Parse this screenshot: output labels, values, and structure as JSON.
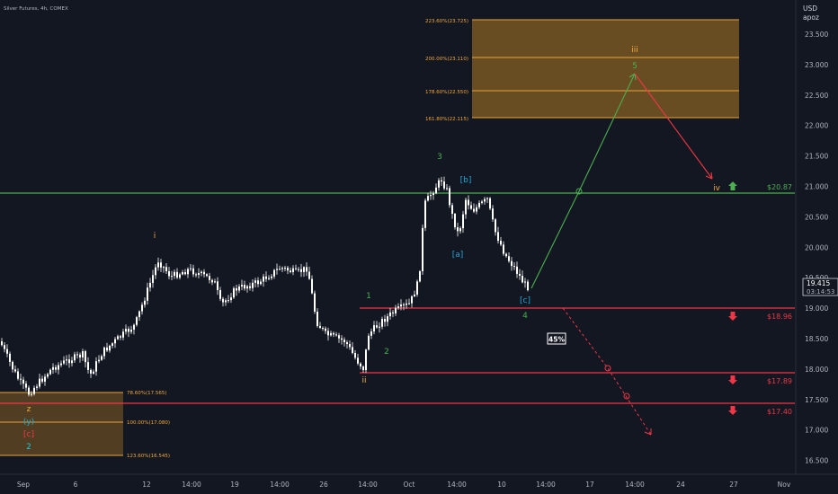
{
  "header": {
    "title": "Silver Futures, 4h, COMEX"
  },
  "currency": "USD",
  "currency_sub": "apoz",
  "chart_data": {
    "type": "candlestick",
    "ylim": [
      16.3,
      23.95
    ],
    "y_ticks": [
      "23.500",
      "23.000",
      "22.500",
      "22.000",
      "21.500",
      "21.000",
      "20.500",
      "20.000",
      "19.500",
      "19.000",
      "18.500",
      "18.000",
      "17.500",
      "17.000",
      "16.500"
    ],
    "x_ticks": [
      "Sep",
      "6",
      "12",
      "14:00",
      "19",
      "14:00",
      "26",
      "14:00",
      "Oct",
      "14:00",
      "10",
      "14:00",
      "17",
      "14:00",
      "24",
      "27",
      "Nov"
    ],
    "last_price": "19.415",
    "countdown": "03:14:53",
    "fib_upper": {
      "levels": [
        {
          "label": "223.60%(23.725)",
          "value": 23.725
        },
        {
          "label": "200.00%(23.110)",
          "value": 23.11
        },
        {
          "label": "178.60%(22.550)",
          "value": 22.55
        },
        {
          "label": "161.80%(22.115)",
          "value": 22.115
        }
      ]
    },
    "fib_lower": {
      "levels": [
        {
          "label": "78.60%(17.565)",
          "value": 17.565
        },
        {
          "label": "100.00%(17.080)",
          "value": 17.08
        },
        {
          "label": "123.60%(16.545)",
          "value": 16.545
        }
      ]
    },
    "horizontal_levels": [
      {
        "value": 20.87,
        "label": "$20.87",
        "color": "#4caf50",
        "arrow": "up"
      },
      {
        "value": 18.96,
        "label": "$18.96",
        "color": "#f23645",
        "arrow": "down"
      },
      {
        "value": 17.89,
        "label": "$17.89",
        "color": "#f23645",
        "arrow": "down"
      },
      {
        "value": 17.4,
        "label": "$17.40",
        "color": "#f23645",
        "arrow": "down"
      }
    ],
    "wave_labels": [
      {
        "text": "i",
        "color": "#f2a93b"
      },
      {
        "text": "ii",
        "color": "#f2a93b"
      },
      {
        "text": "iii",
        "color": "#f2a93b"
      },
      {
        "text": "iv",
        "color": "#f2a93b"
      },
      {
        "text": "1",
        "color": "#4caf50"
      },
      {
        "text": "2",
        "color": "#4caf50"
      },
      {
        "text": "3",
        "color": "#4caf50"
      },
      {
        "text": "4",
        "color": "#4caf50"
      },
      {
        "text": "5",
        "color": "#4caf50"
      },
      {
        "text": "[a]",
        "color": "#22a6d8"
      },
      {
        "text": "[b]",
        "color": "#22a6d8"
      },
      {
        "text": "[c]",
        "color": "#22a6d8"
      },
      {
        "text": "z",
        "color": "#f2a93b"
      },
      {
        "text": "(y)",
        "color": "#22a6d8"
      },
      {
        "text": "[c]",
        "color": "#f23645"
      },
      {
        "text": "2",
        "color": "#22c4d8"
      }
    ],
    "probability_label": "45%",
    "colors": {
      "background": "#131722",
      "candle": "#ffffff",
      "fib_fill": "#f5a623",
      "fib_line": "#e8a33a",
      "bull_path": "#4caf50",
      "bear_path": "#f23645",
      "axis_text": "#b2b5be"
    }
  }
}
